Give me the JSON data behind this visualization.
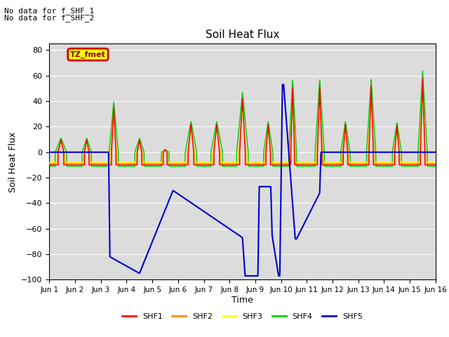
{
  "title": "Soil Heat Flux",
  "ylabel": "Soil Heat Flux",
  "xlabel": "Time",
  "ylim": [
    -100,
    85
  ],
  "xlim": [
    0,
    15
  ],
  "yticks": [
    80,
    60,
    40,
    20,
    0,
    -20,
    -40,
    -60,
    -80,
    -100
  ],
  "xtick_labels": [
    "Jun 1",
    "Jun 2",
    "Jun 3",
    "Jun 4",
    "Jun 5",
    "Jun 6",
    "Jun 7",
    "Jun 8",
    "Jun 9",
    "Jun 10",
    "Jun 11",
    "Jun 12",
    "Jun 13",
    "Jun 14",
    "Jun 15",
    "Jun 16"
  ],
  "xtick_positions": [
    0,
    1,
    2,
    3,
    4,
    5,
    6,
    7,
    8,
    9,
    10,
    11,
    12,
    13,
    14,
    15
  ],
  "no_data_text1": "No data for f_SHF_1",
  "no_data_text2": "No data for f_SHF_2",
  "legend_label": "TZ_fmet",
  "legend_bg": "#FFFF00",
  "legend_border": "#CC0000",
  "bg_color": "#DCDCDC",
  "series_colors": [
    "#FF0000",
    "#FF8C00",
    "#FFFF00",
    "#00CC00",
    "#0000CD"
  ],
  "series_names": [
    "SHF1",
    "SHF2",
    "SHF3",
    "SHF4",
    "SHF5"
  ],
  "shf5_x": [
    0,
    2.3,
    2.35,
    3.5,
    4.8,
    7.5,
    7.6,
    8.1,
    8.15,
    8.6,
    8.65,
    8.9,
    8.95,
    9.05,
    9.1,
    9.55,
    9.6,
    10.5,
    10.55,
    15
  ],
  "shf5_y": [
    0,
    0,
    -82,
    -95,
    -30,
    -67,
    -97,
    -97,
    -27,
    -27,
    -65,
    -97,
    -97,
    53,
    53,
    -68,
    -68,
    -32,
    0,
    0
  ]
}
